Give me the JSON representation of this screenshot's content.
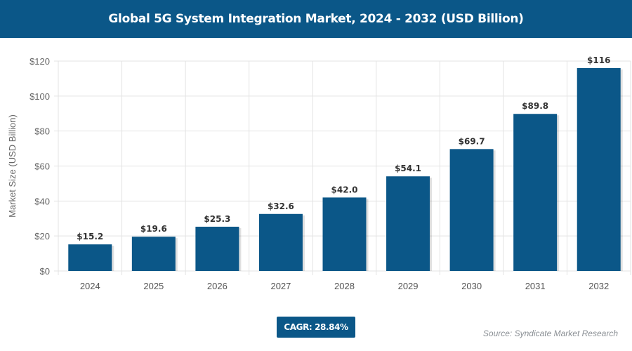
{
  "header": {
    "title": "Global 5G System Integration Market, 2024 - 2032 (USD Billion)"
  },
  "chart_data": {
    "type": "bar",
    "title": "Global 5G System Integration Market, 2024 - 2032 (USD Billion)",
    "categories": [
      "2024",
      "2025",
      "2026",
      "2027",
      "2028",
      "2029",
      "2030",
      "2031",
      "2032"
    ],
    "values": [
      15.2,
      19.6,
      25.3,
      32.6,
      42.0,
      54.1,
      69.7,
      89.8,
      116
    ],
    "data_labels": [
      "$15.2",
      "$19.6",
      "$25.3",
      "$32.6",
      "$42.0",
      "$54.1",
      "$69.7",
      "$89.8",
      "$116"
    ],
    "xlabel": "",
    "ylabel": "Market Size (USD Billion)",
    "ylim": [
      0,
      120
    ],
    "yticks": [
      0,
      20,
      40,
      60,
      80,
      100,
      120
    ],
    "ytick_labels": [
      "$0",
      "$20",
      "$40",
      "$60",
      "$80",
      "$100",
      "$120"
    ],
    "grid": true,
    "bar_color": "#0b5788"
  },
  "footer": {
    "cagr": "CAGR: 28.84%",
    "source": "Source: Syndicate Market Research"
  }
}
